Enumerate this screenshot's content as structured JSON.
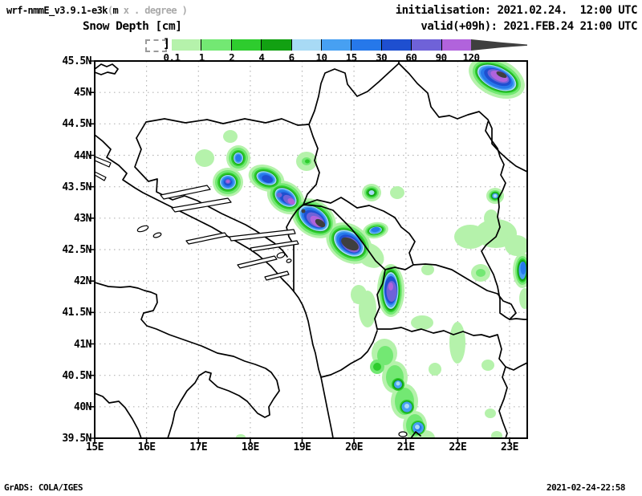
{
  "header": {
    "title_black1": "wrf-nmmE_v3.9.1-e3k",
    "title_gray1": "(",
    "title_black2": "m",
    "title_gray2": " x . degree )",
    "subtitle": "Snow Depth [cm]",
    "init_line": "initialisation: 2021.02.24.  12:00 UTC",
    "valid_line": "valid(+09h): 2021.FEB.24 21:00 UTC"
  },
  "colorbar": {
    "values": [
      "0.1",
      "1",
      "2",
      "4",
      "6",
      "10",
      "15",
      "30",
      "60",
      "90",
      "120"
    ],
    "colors": [
      "#b5f2ab",
      "#73e873",
      "#2ecc2e",
      "#12a112",
      "#a8daf5",
      "#47a0f2",
      "#2678ea",
      "#1e4fd0",
      "#6f62d8",
      "#b163dc"
    ],
    "overflow_color": "#3f3f3f"
  },
  "axes": {
    "lat": [
      "45.5N",
      "45N",
      "44.5N",
      "44N",
      "43.5N",
      "43N",
      "42.5N",
      "42N",
      "41.5N",
      "41N",
      "40.5N",
      "40N",
      "39.5N"
    ],
    "lon": [
      "15E",
      "16E",
      "17E",
      "18E",
      "19E",
      "20E",
      "21E",
      "22E",
      "23E"
    ]
  },
  "map_info": {
    "variable": "Snow Depth",
    "units": "cm",
    "scale_values": [
      0.1,
      1,
      2,
      4,
      6,
      10,
      15,
      30,
      60,
      90,
      120
    ],
    "lat_min": "39.5N",
    "lat_max": "45.5N",
    "lon_min": "15E",
    "lon_max": "23E"
  },
  "footer": {
    "left": "GrADS: COLA/IGES",
    "right": "2021-02-24-22:58"
  }
}
